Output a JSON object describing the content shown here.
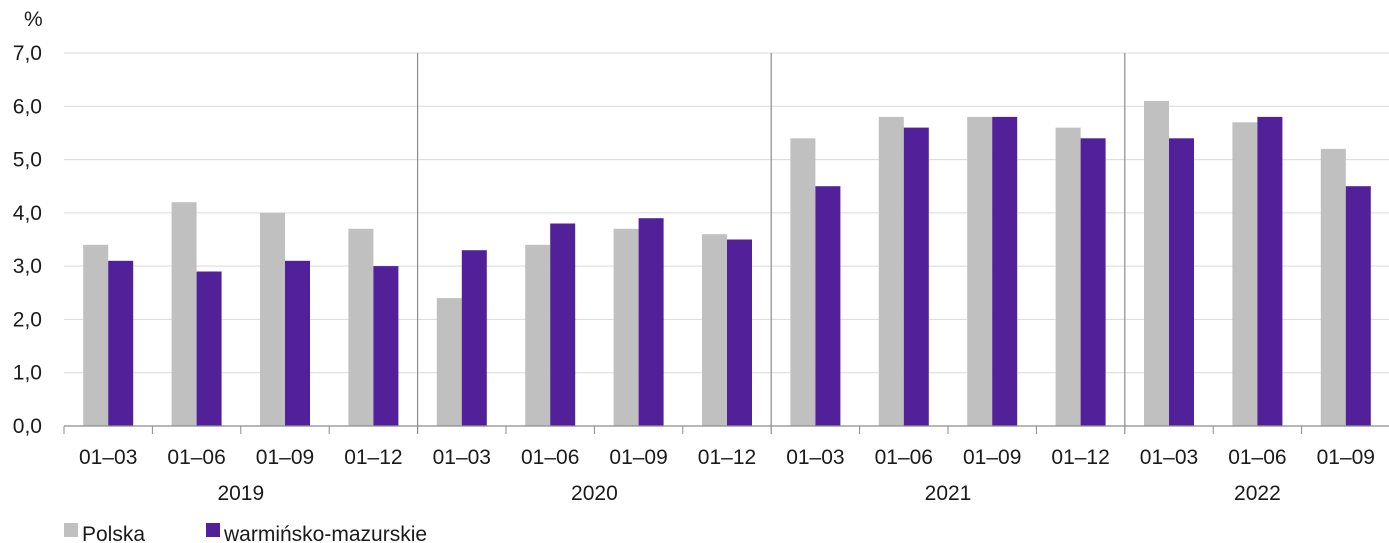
{
  "chart_data": {
    "type": "bar",
    "unit_label": "%",
    "y_ticks": [
      "0,0",
      "1,0",
      "2,0",
      "3,0",
      "4,0",
      "5,0",
      "6,0",
      "7,0"
    ],
    "ylim": [
      0,
      7
    ],
    "grid": true,
    "legend_position": "bottom-left",
    "groups": [
      {
        "year": "2019",
        "categories": [
          "01–03",
          "01–06",
          "01–09",
          "01–12"
        ]
      },
      {
        "year": "2020",
        "categories": [
          "01–03",
          "01–06",
          "01–09",
          "01–12"
        ]
      },
      {
        "year": "2021",
        "categories": [
          "01–03",
          "01–06",
          "01–09",
          "01–12"
        ]
      },
      {
        "year": "2022",
        "categories": [
          "01–03",
          "01–06",
          "01–09"
        ]
      }
    ],
    "series": [
      {
        "name": "Polska",
        "color": "#c0c0c0",
        "values": [
          3.4,
          4.2,
          4.0,
          3.7,
          2.4,
          3.4,
          3.7,
          3.6,
          5.4,
          5.8,
          5.8,
          5.6,
          6.1,
          5.7,
          5.2
        ]
      },
      {
        "name": "warmińsko-mazurskie",
        "color": "#52219a",
        "values": [
          3.1,
          2.9,
          3.1,
          3.0,
          3.3,
          3.8,
          3.9,
          3.5,
          4.5,
          5.6,
          5.8,
          5.4,
          5.4,
          5.8,
          4.5
        ]
      }
    ]
  }
}
